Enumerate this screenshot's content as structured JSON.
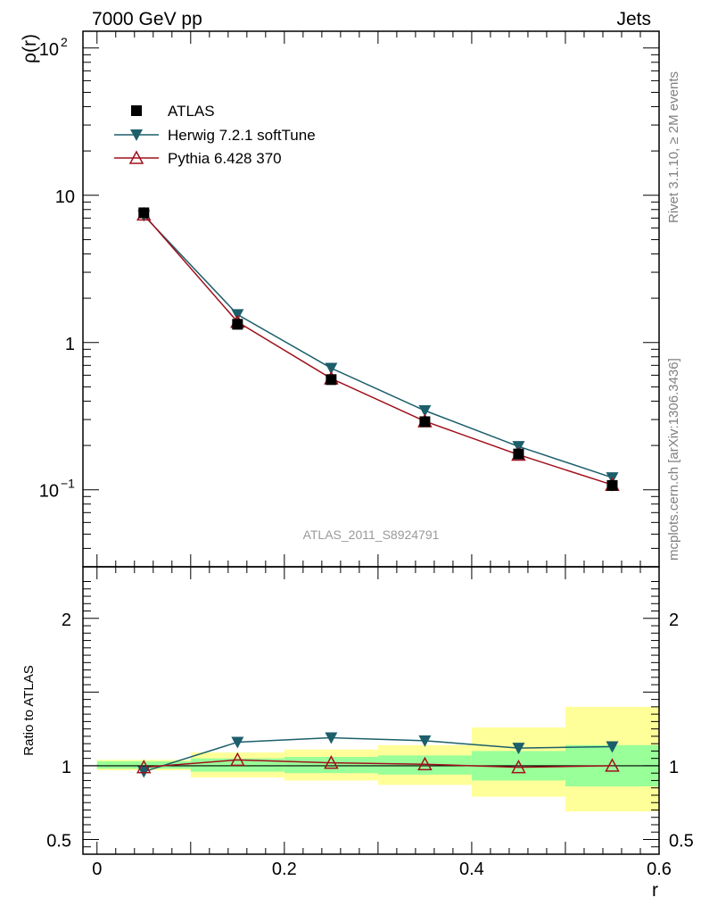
{
  "header": {
    "left": "7000 GeV pp",
    "right": "Jets"
  },
  "side_text": {
    "rivet": "Rivet 3.1.10, ≥ 2M events",
    "source": "mcplots.cern.ch [arXiv:1306.3436]"
  },
  "watermark": "ATLAS_2011_S8924791",
  "colors": {
    "data": "#000000",
    "herwig": "#1c5f6b",
    "pythia": "#a0101c",
    "band_inner": "#99ff99",
    "band_outer": "#ffff99"
  },
  "chart_data": [
    {
      "type": "line",
      "panel": "main",
      "ylabel": "ρ(r)",
      "yscale": "log",
      "ylim": [
        0.03,
        130
      ],
      "xlim": [
        -0.015,
        0.6
      ],
      "y_ticks": [
        {
          "value": 100,
          "label": "10",
          "sup": "2"
        },
        {
          "value": 10,
          "label": "10",
          "sup": ""
        },
        {
          "value": 1,
          "label": "1",
          "sup": ""
        },
        {
          "value": 0.1,
          "label": "10",
          "sup": "−1"
        }
      ],
      "x": [
        0.05,
        0.15,
        0.25,
        0.35,
        0.45,
        0.55
      ],
      "series": [
        {
          "name": "ATLAS",
          "marker": "square",
          "values": [
            7.6,
            1.33,
            0.56,
            0.29,
            0.175,
            0.107
          ],
          "errors": [
            0.25,
            0.06,
            0.025,
            0.015,
            0.012,
            0.009
          ]
        },
        {
          "name": "Herwig 7.2.1 softTune",
          "marker": "triangle-down",
          "values": [
            7.3,
            1.55,
            0.67,
            0.345,
            0.197,
            0.121
          ]
        },
        {
          "name": "Pythia 6.428 370",
          "marker": "triangle-up-open",
          "values": [
            7.4,
            1.38,
            0.57,
            0.292,
            0.173,
            0.108
          ]
        }
      ]
    },
    {
      "type": "line",
      "panel": "ratio",
      "xlabel": "r",
      "ylabel": "Ratio to ATLAS",
      "ylim": [
        0.4,
        2.35
      ],
      "xlim": [
        -0.015,
        0.6
      ],
      "y_ticks": [
        {
          "value": 2,
          "label": "2"
        },
        {
          "value": 1,
          "label": "1"
        },
        {
          "value": 0.5,
          "label": "0.5"
        }
      ],
      "x_ticks": [
        {
          "value": 0,
          "label": "0"
        },
        {
          "value": 0.2,
          "label": "0.2"
        },
        {
          "value": 0.4,
          "label": "0.4"
        },
        {
          "value": 0.6,
          "label": "0.6"
        }
      ],
      "x": [
        0.05,
        0.15,
        0.25,
        0.35,
        0.45,
        0.55
      ],
      "bins": [
        {
          "lo": 0.0,
          "hi": 0.1,
          "inner": [
            0.98,
            1.03
          ],
          "outer": [
            0.97,
            1.04
          ]
        },
        {
          "lo": 0.1,
          "hi": 0.2,
          "inner": [
            0.96,
            1.05
          ],
          "outer": [
            0.92,
            1.09
          ]
        },
        {
          "lo": 0.2,
          "hi": 0.3,
          "inner": [
            0.95,
            1.06
          ],
          "outer": [
            0.9,
            1.11
          ]
        },
        {
          "lo": 0.3,
          "hi": 0.4,
          "inner": [
            0.94,
            1.07
          ],
          "outer": [
            0.87,
            1.14
          ]
        },
        {
          "lo": 0.4,
          "hi": 0.5,
          "inner": [
            0.9,
            1.1
          ],
          "outer": [
            0.79,
            1.26
          ]
        },
        {
          "lo": 0.5,
          "hi": 0.6,
          "inner": [
            0.86,
            1.14
          ],
          "outer": [
            0.69,
            1.4
          ]
        }
      ],
      "series": [
        {
          "name": "ATLAS",
          "values": [
            1,
            1,
            1,
            1,
            1,
            1
          ]
        },
        {
          "name": "Herwig 7.2.1 softTune",
          "values": [
            0.96,
            1.16,
            1.19,
            1.17,
            1.12,
            1.13
          ]
        },
        {
          "name": "Pythia 6.428 370",
          "values": [
            0.99,
            1.04,
            1.02,
            1.01,
            0.99,
            1.0
          ]
        }
      ]
    }
  ]
}
